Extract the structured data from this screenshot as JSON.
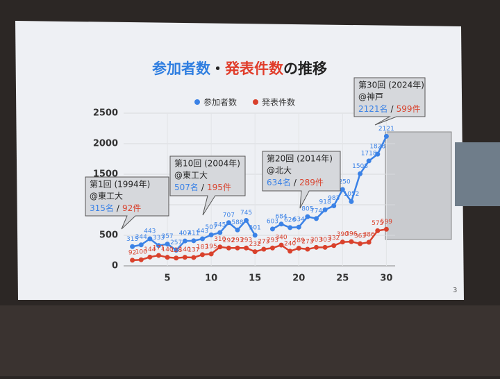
{
  "chart_data": {
    "type": "line",
    "title_parts": [
      {
        "text": "参加者数",
        "color": "#2f7ee0"
      },
      {
        "text": "・",
        "color": "#222222"
      },
      {
        "text": "発表件数",
        "color": "#e03c2a"
      },
      {
        "text": "の推移",
        "color": "#222222"
      }
    ],
    "x": [
      1,
      2,
      3,
      4,
      5,
      6,
      7,
      8,
      9,
      10,
      11,
      12,
      13,
      14,
      15,
      16,
      17,
      18,
      19,
      20,
      21,
      22,
      23,
      24,
      25,
      26,
      27,
      28,
      29,
      30
    ],
    "series": [
      {
        "name": "参加者数",
        "color": "#3b82e6",
        "values": [
          315,
          344,
          443,
          333,
          357,
          257,
          407,
          411,
          443,
          507,
          545,
          707,
          588,
          745,
          501,
          null,
          603,
          684,
          626,
          634,
          805,
          774,
          918,
          983,
          1250,
          1052,
          1508,
          1718,
          1828,
          2121
        ]
      },
      {
        "name": "発表件数",
        "color": "#d9412c",
        "values": [
          92,
          100,
          144,
          171,
          140,
          128,
          140,
          137,
          183,
          195,
          310,
          292,
          293,
          293,
          232,
          273,
          293,
          340,
          240,
          289,
          273,
          303,
          303,
          332,
          390,
          396,
          363,
          386,
          575,
          599
        ]
      }
    ],
    "xlim": [
      0,
      31
    ],
    "xticks": [
      5,
      10,
      15,
      20,
      25,
      30
    ],
    "ylim": [
      0,
      2500
    ],
    "yticks": [
      0,
      500,
      1000,
      1500,
      2000,
      2500
    ],
    "grid": true,
    "legend": "top",
    "annotations": [
      {
        "lines": [
          "第1回 (1994年)",
          "@東工大"
        ],
        "participants": "315名",
        "sep": "/",
        "papers": "92件"
      },
      {
        "lines": [
          "第10回 (2004年)",
          "@東工大"
        ],
        "participants": "507名",
        "sep": "/",
        "papers": "195件"
      },
      {
        "lines": [
          "第20回 (2014年)",
          "@北大"
        ],
        "participants": "634名",
        "sep": "/",
        "papers": "289件"
      },
      {
        "lines": [
          "第30回 (2024年)",
          "@神戸"
        ],
        "participants": "2121名",
        "sep": "/",
        "papers": "599件"
      }
    ]
  },
  "page_number": "3"
}
